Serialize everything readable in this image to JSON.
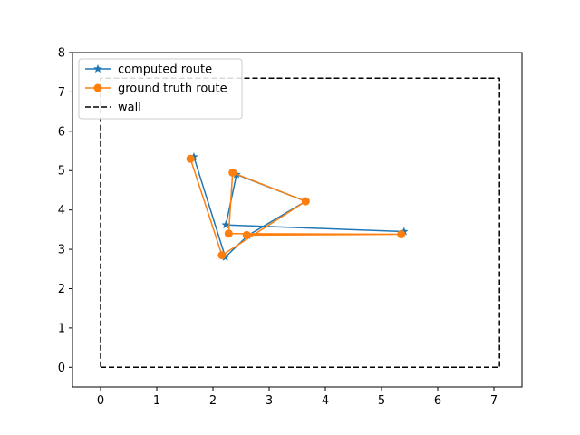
{
  "chart_data": {
    "type": "line",
    "title": "",
    "xlabel": "",
    "ylabel": "",
    "xlim": [
      -0.5,
      7.5
    ],
    "ylim": [
      -0.5,
      8.0
    ],
    "xticks": [
      0,
      1,
      2,
      3,
      4,
      5,
      6,
      7
    ],
    "yticks": [
      0,
      1,
      2,
      3,
      4,
      5,
      6,
      7,
      8
    ],
    "grid": false,
    "legend_position": "upper-left",
    "series": [
      {
        "name": "computed route",
        "color": "#1f77b4",
        "marker": "star",
        "linestyle": "solid",
        "x": [
          1.66,
          2.22,
          2.62,
          3.65,
          2.42,
          2.23,
          5.4
        ],
        "y": [
          5.35,
          2.8,
          3.35,
          4.22,
          4.9,
          3.62,
          3.45
        ]
      },
      {
        "name": "ground truth route",
        "color": "#ff7f0e",
        "marker": "circle",
        "linestyle": "solid",
        "x": [
          1.6,
          2.16,
          3.65,
          2.35,
          2.28,
          5.35,
          2.6
        ],
        "y": [
          5.3,
          2.85,
          4.22,
          4.95,
          3.4,
          3.38,
          3.36
        ]
      },
      {
        "name": "wall",
        "color": "#000000",
        "marker": "none",
        "linestyle": "dashed",
        "x": [
          0,
          7.1,
          7.1,
          0,
          0
        ],
        "y": [
          0,
          0,
          7.35,
          7.35,
          0
        ]
      }
    ]
  }
}
